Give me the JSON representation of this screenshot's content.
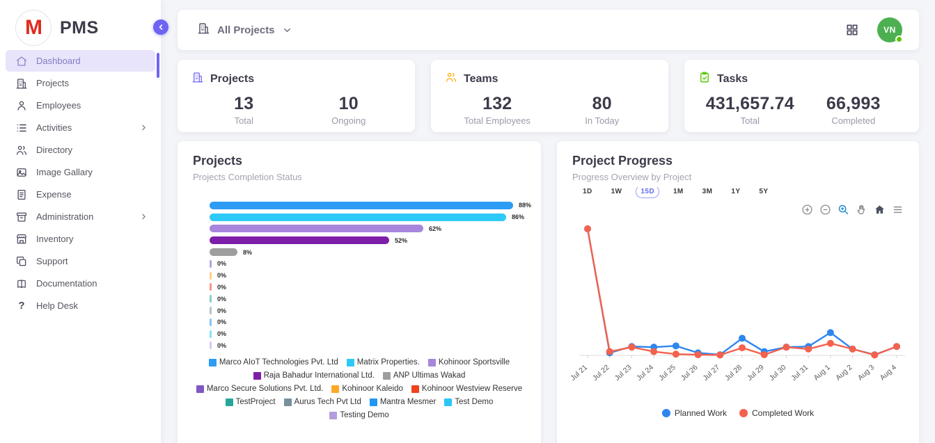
{
  "app": {
    "name": "PMS",
    "logo_letter": "M",
    "accent": "#6e63f2"
  },
  "sidebar": {
    "items": [
      {
        "label": "Dashboard",
        "icon": "home-icon",
        "active": true,
        "has_children": false
      },
      {
        "label": "Projects",
        "icon": "building-icon",
        "active": false,
        "has_children": false
      },
      {
        "label": "Employees",
        "icon": "user-icon",
        "active": false,
        "has_children": false
      },
      {
        "label": "Activities",
        "icon": "list-icon",
        "active": false,
        "has_children": true
      },
      {
        "label": "Directory",
        "icon": "users-icon",
        "active": false,
        "has_children": false
      },
      {
        "label": "Image Gallary",
        "icon": "image-icon",
        "active": false,
        "has_children": false
      },
      {
        "label": "Expense",
        "icon": "receipt-icon",
        "active": false,
        "has_children": false
      },
      {
        "label": "Administration",
        "icon": "archive-icon",
        "active": false,
        "has_children": true
      },
      {
        "label": "Inventory",
        "icon": "store-icon",
        "active": false,
        "has_children": false
      },
      {
        "label": "Support",
        "icon": "copy-icon",
        "active": false,
        "has_children": false
      },
      {
        "label": "Documentation",
        "icon": "book-icon",
        "active": false,
        "has_children": false
      },
      {
        "label": "Help Desk",
        "icon": "question-icon",
        "active": false,
        "has_children": false
      }
    ]
  },
  "topbar": {
    "project_filter_label": "All Projects",
    "filter_icon": "building-icon",
    "dropdown_icon": "chevron-down-icon",
    "apps_icon": "grid-icon",
    "avatar_initials": "VN",
    "avatar_color": "#4cb050",
    "status_color": "#56ca00"
  },
  "stats_cards": [
    {
      "title": "Projects",
      "icon": "building-icon",
      "accent": "#6e63f2",
      "stats": [
        {
          "value": "13",
          "label": "Total"
        },
        {
          "value": "10",
          "label": "Ongoing"
        }
      ]
    },
    {
      "title": "Teams",
      "icon": "users-icon",
      "accent": "#ffab00",
      "stats": [
        {
          "value": "132",
          "label": "Total Employees"
        },
        {
          "value": "80",
          "label": "In Today"
        }
      ]
    },
    {
      "title": "Tasks",
      "icon": "clipboard-check-icon",
      "accent": "#56ca00",
      "stats": [
        {
          "value": "431,657.74",
          "label": "Total"
        },
        {
          "value": "66,993",
          "label": "Completed"
        }
      ]
    }
  ],
  "projects_card": {
    "title": "Projects",
    "subtitle": "Projects Completion Status"
  },
  "progress_card": {
    "title": "Project Progress",
    "subtitle": "Progress Overview by Project",
    "ranges": [
      "1D",
      "1W",
      "15D",
      "1M",
      "3M",
      "1Y",
      "5Y"
    ],
    "active_range": "15D",
    "modebar_icons": [
      "zoom-in-icon",
      "zoom-out-icon",
      "zoom-select-icon",
      "pan-icon",
      "home-reset-icon",
      "menu-icon"
    ]
  },
  "chart_data": [
    {
      "type": "bar",
      "orientation": "horizontal",
      "title": "Projects Completion Status",
      "categories": [
        "Marco AIoT Technologies Pvt. Ltd",
        "Matrix Properties.",
        "Kohinoor Sportsville",
        "Raja Bahadur International Ltd.",
        "ANP Ultimas Wakad",
        "Marco Secure Solutions Pvt. Ltd.",
        "Kohinoor Kaleido",
        "Kohinoor Westview Reserve",
        "TestProject",
        "Aurus Tech Pvt Ltd",
        "Mantra Mesmer",
        "Test Demo",
        "Testing Demo"
      ],
      "values": [
        88,
        86,
        62,
        52,
        8,
        0,
        0,
        0,
        0,
        0,
        0,
        0,
        0
      ],
      "value_labels": [
        "88%",
        "86%",
        "62%",
        "52%",
        "8%",
        "0%",
        "0%",
        "0%",
        "0%",
        "0%",
        "0%",
        "0%",
        "0%"
      ],
      "colors": [
        "#2d9cf4",
        "#2ec9f6",
        "#a886dd",
        "#7d1fa8",
        "#9e9e9e",
        "#7e57c2",
        "#ffa726",
        "#f0421c",
        "#26a69a",
        "#78909c",
        "#2196f3",
        "#29c6f6",
        "#b39ddb"
      ],
      "xlim": [
        0,
        100
      ],
      "unit": "%",
      "grid": false,
      "legend_position": "bottom"
    },
    {
      "type": "line",
      "title": "Progress Overview by Project",
      "x": [
        "Jul 21",
        "Jul 22",
        "Jul 23",
        "Jul 24",
        "Jul 25",
        "Jul 26",
        "Jul 27",
        "Jul 28",
        "Jul 29",
        "Jul 30",
        "Jul 31",
        "Aug 1",
        "Aug 2",
        "Aug 3",
        "Aug 4"
      ],
      "series": [
        {
          "name": "Planned Work",
          "color": "#2e86f0",
          "values": [
            100,
            2,
            7,
            6.5,
            7.5,
            2,
            0.5,
            13.5,
            3,
            6.5,
            7,
            18,
            5,
            0.5,
            7
          ]
        },
        {
          "name": "Completed Work",
          "color": "#f4614d",
          "values": [
            100,
            3,
            6.5,
            3,
            1,
            0.5,
            0.3,
            6,
            0.5,
            6.5,
            5,
            9.5,
            5,
            0.3,
            7
          ]
        }
      ],
      "note": "Values are relative units; y-axis tick labels are not shown in the chart",
      "ylim": [
        0,
        105
      ],
      "grid": false,
      "legend_position": "bottom"
    }
  ]
}
